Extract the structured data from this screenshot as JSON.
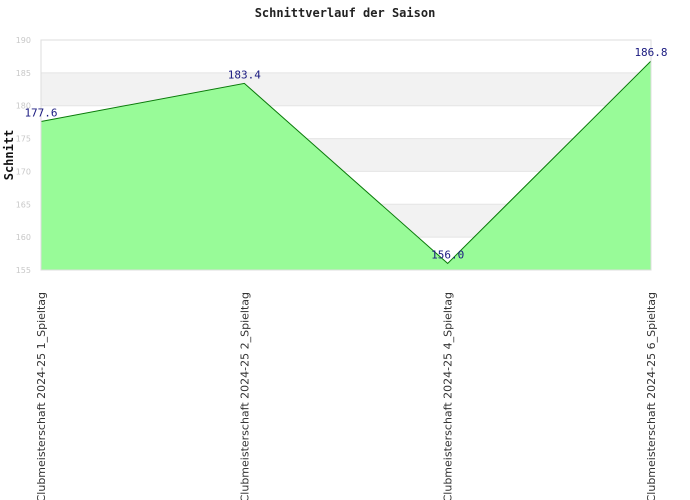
{
  "chart_data": {
    "type": "area",
    "title": "Schnittverlauf der Saison",
    "xlabel": "",
    "ylabel": "Schnitt",
    "categories": [
      "Clubmeisterschaft 2024-25  1_Spieltag",
      "Clubmeisterschaft 2024-25  2_Spieltag",
      "Clubmeisterschaft 2024-25  4_Spieltag",
      "Clubmeisterschaft 2024-25  6_Spieltag"
    ],
    "values": [
      177.6,
      183.4,
      156.0,
      186.8
    ],
    "data_labels": [
      "177.6",
      "183.4",
      "156.0",
      "186.8"
    ],
    "ylim": [
      155,
      190
    ],
    "yticks": [
      155,
      160,
      165,
      170,
      175,
      180,
      185,
      190
    ],
    "grid": true,
    "legend": "none",
    "colors": {
      "area_fill": "#98fb98",
      "line": "#0a7a0a",
      "band": "#f2f2f2",
      "data_label": "#1a1a80"
    }
  }
}
